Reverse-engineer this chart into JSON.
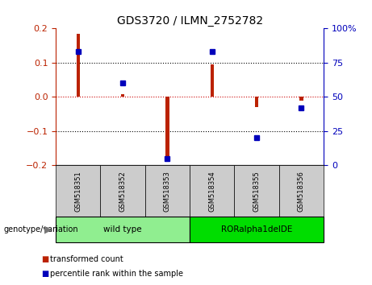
{
  "title": "GDS3720 / ILMN_2752782",
  "samples": [
    "GSM518351",
    "GSM518352",
    "GSM518353",
    "GSM518354",
    "GSM518355",
    "GSM518356"
  ],
  "red_bars": [
    0.185,
    0.007,
    -0.18,
    0.095,
    -0.03,
    -0.012
  ],
  "blue_dots_pct": [
    83,
    60,
    5,
    83,
    20,
    42
  ],
  "ylim": [
    -0.2,
    0.2
  ],
  "right_ylim": [
    0,
    100
  ],
  "yticks_left": [
    -0.2,
    -0.1,
    0,
    0.1,
    0.2
  ],
  "yticks_right": [
    0,
    25,
    50,
    75,
    100
  ],
  "groups": [
    {
      "label": "wild type",
      "indices": [
        0,
        1,
        2
      ],
      "color": "#90EE90"
    },
    {
      "label": "RORalpha1delDE",
      "indices": [
        3,
        4,
        5
      ],
      "color": "#00DD00"
    }
  ],
  "red_color": "#BB2200",
  "blue_color": "#0000BB",
  "bar_width": 0.08,
  "marker_size": 5,
  "legend_items": [
    {
      "label": "transformed count",
      "color": "#BB2200"
    },
    {
      "label": "percentile rank within the sample",
      "color": "#0000BB"
    }
  ],
  "group_label": "genotype/variation",
  "background_plot": "#FFFFFF",
  "background_sample": "#CCCCCC",
  "dotted_line_color": "#000000",
  "zero_line_color": "#CC0000"
}
